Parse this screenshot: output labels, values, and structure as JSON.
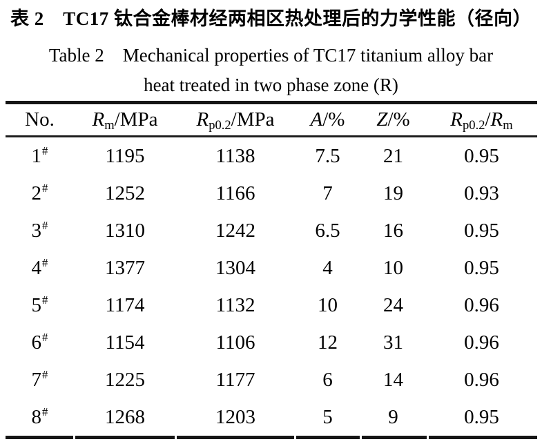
{
  "caption": {
    "zh": "表 2　TC17 钛合金棒材经两相区热处理后的力学性能（径向）",
    "en_line1": "Table 2　Mechanical properties of TC17 titanium alloy bar",
    "en_line2": "heat treated in two phase zone (R)"
  },
  "table": {
    "columns": [
      {
        "key": "no",
        "label": "No.",
        "parts": [
          {
            "text": "No."
          }
        ],
        "cell_sup_suffix": "#"
      },
      {
        "key": "rm",
        "label": "Rm/MPa",
        "parts": [
          {
            "text": "R",
            "style": "italic"
          },
          {
            "text": "m",
            "style": "sub"
          },
          {
            "text": "/MPa"
          }
        ]
      },
      {
        "key": "rp02",
        "label": "Rp0.2/MPa",
        "parts": [
          {
            "text": "R",
            "style": "italic"
          },
          {
            "text": "p0.2",
            "style": "sub"
          },
          {
            "text": "/MPa"
          }
        ]
      },
      {
        "key": "a",
        "label": "A/%",
        "parts": [
          {
            "text": "A",
            "style": "italic"
          },
          {
            "text": "/%"
          }
        ]
      },
      {
        "key": "z",
        "label": "Z/%",
        "parts": [
          {
            "text": "Z",
            "style": "italic"
          },
          {
            "text": "/%"
          }
        ]
      },
      {
        "key": "ratio",
        "label": "Rp0.2/Rm",
        "parts": [
          {
            "text": "R",
            "style": "italic"
          },
          {
            "text": "p0.2",
            "style": "sub"
          },
          {
            "text": "/"
          },
          {
            "text": "R",
            "style": "italic"
          },
          {
            "text": "m",
            "style": "sub"
          }
        ]
      }
    ],
    "rows": [
      [
        "1",
        "1195",
        "1138",
        "7.5",
        "21",
        "0.95"
      ],
      [
        "2",
        "1252",
        "1166",
        "7",
        "19",
        "0.93"
      ],
      [
        "3",
        "1310",
        "1242",
        "6.5",
        "16",
        "0.95"
      ],
      [
        "4",
        "1377",
        "1304",
        "4",
        "10",
        "0.95"
      ],
      [
        "5",
        "1174",
        "1132",
        "10",
        "24",
        "0.96"
      ],
      [
        "6",
        "1154",
        "1106",
        "12",
        "31",
        "0.96"
      ],
      [
        "7",
        "1225",
        "1177",
        "6",
        "14",
        "0.96"
      ],
      [
        "8",
        "1268",
        "1203",
        "5",
        "9",
        "0.95"
      ]
    ]
  },
  "colors": {
    "rule": "#161616",
    "text": "#000000",
    "background": "#ffffff"
  }
}
